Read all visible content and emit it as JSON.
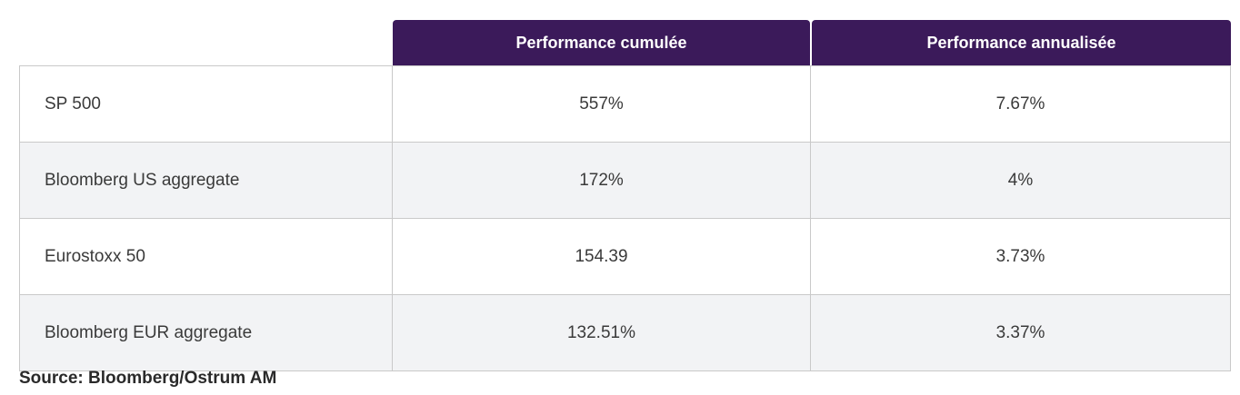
{
  "table": {
    "headers": [
      "",
      "Performance cumulée",
      "Performance annualisée"
    ],
    "rows": [
      {
        "name": "SP 500",
        "cumulative": "557%",
        "annualized": "7.67%"
      },
      {
        "name": "Bloomberg US aggregate",
        "cumulative": "172%",
        "annualized": "4%"
      },
      {
        "name": "Eurostoxx 50",
        "cumulative": "154.39",
        "annualized": "3.73%"
      },
      {
        "name": "Bloomberg EUR aggregate",
        "cumulative": "132.51%",
        "annualized": "3.37%"
      }
    ]
  },
  "source": "Source: Bloomberg/Ostrum AM",
  "colors": {
    "header_bg": "#3b1a5a",
    "header_text": "#ffffff",
    "alt_row_bg": "#f2f3f5",
    "border": "#c9c9c9"
  }
}
